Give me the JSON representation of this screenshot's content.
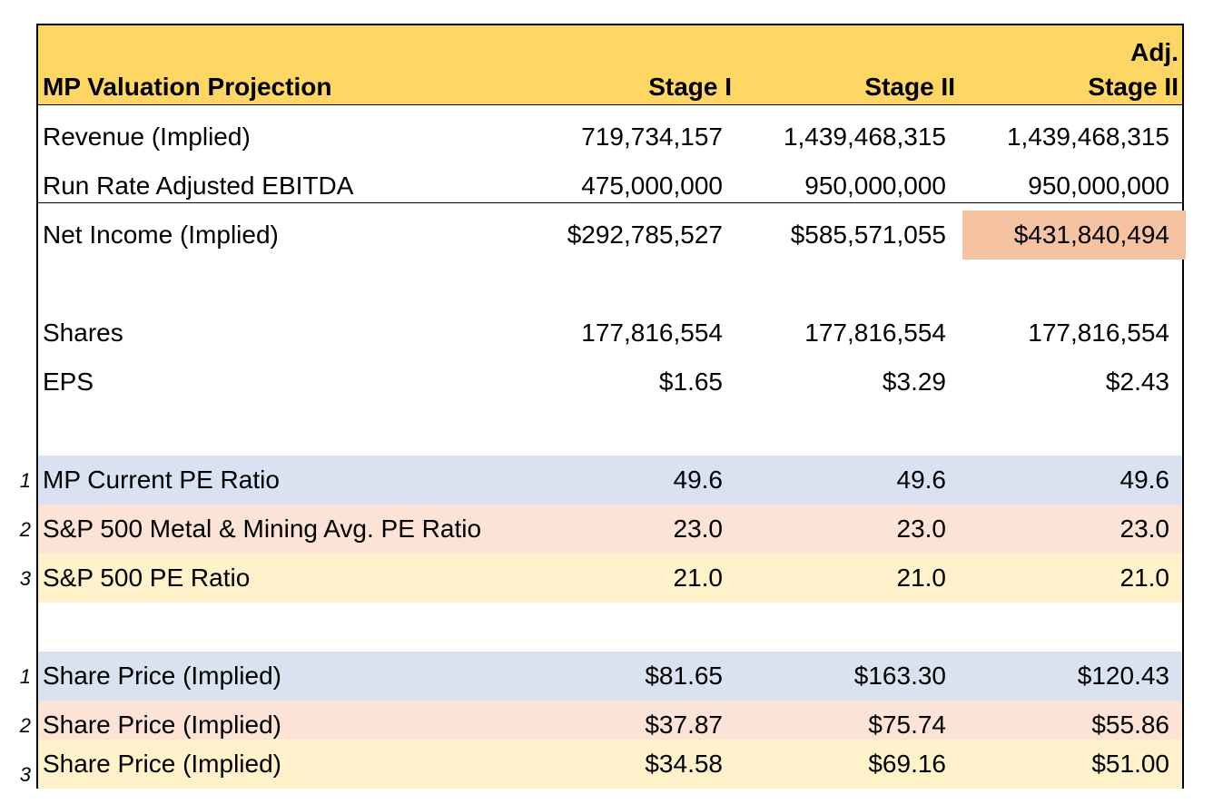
{
  "header": {
    "title": "MP Valuation Projection",
    "col1": "Stage I",
    "col2": "Stage II",
    "col3_line1": "Adj.",
    "col3_line2": "Stage II"
  },
  "rows": [
    {
      "label": "Revenue (Implied)",
      "values": [
        "719,734,157",
        "1,439,468,315",
        "1,439,468,315"
      ]
    },
    {
      "label": "Run Rate Adjusted EBITDA",
      "values": [
        "475,000,000",
        "950,000,000",
        "950,000,000"
      ]
    },
    {
      "label": "Net Income (Implied)",
      "values": [
        "$292,785,527",
        "$585,571,055",
        "$431,840,494"
      ]
    },
    {
      "label": "Shares",
      "values": [
        "177,816,554",
        "177,816,554",
        "177,816,554"
      ]
    },
    {
      "label": "EPS",
      "values": [
        "$1.65",
        "$3.29",
        "$2.43"
      ]
    },
    {
      "num": "1",
      "label": "MP Current PE Ratio",
      "values": [
        "49.6",
        "49.6",
        "49.6"
      ]
    },
    {
      "num": "2",
      "label": "S&P 500 Metal & Mining Avg. PE Ratio",
      "values": [
        "23.0",
        "23.0",
        "23.0"
      ]
    },
    {
      "num": "3",
      "label": "S&P 500 PE Ratio",
      "values": [
        "21.0",
        "21.0",
        "21.0"
      ]
    },
    {
      "num": "1",
      "label": "Share Price (Implied)",
      "values": [
        "$81.65",
        "$163.30",
        "$120.43"
      ]
    },
    {
      "num": "2",
      "label": "Share Price (Implied)",
      "values": [
        "$37.87",
        "$75.74",
        "$55.86"
      ]
    },
    {
      "num": "3",
      "label": "Share Price (Implied)",
      "values": [
        "$34.58",
        "$69.16",
        "$51.00"
      ]
    }
  ],
  "colors": {
    "header": "#fed664",
    "highlight": "#f6c3a2",
    "scenario_1": "#d9e2f0",
    "scenario_2": "#fce3d6",
    "scenario_3": "#fff2cb"
  }
}
